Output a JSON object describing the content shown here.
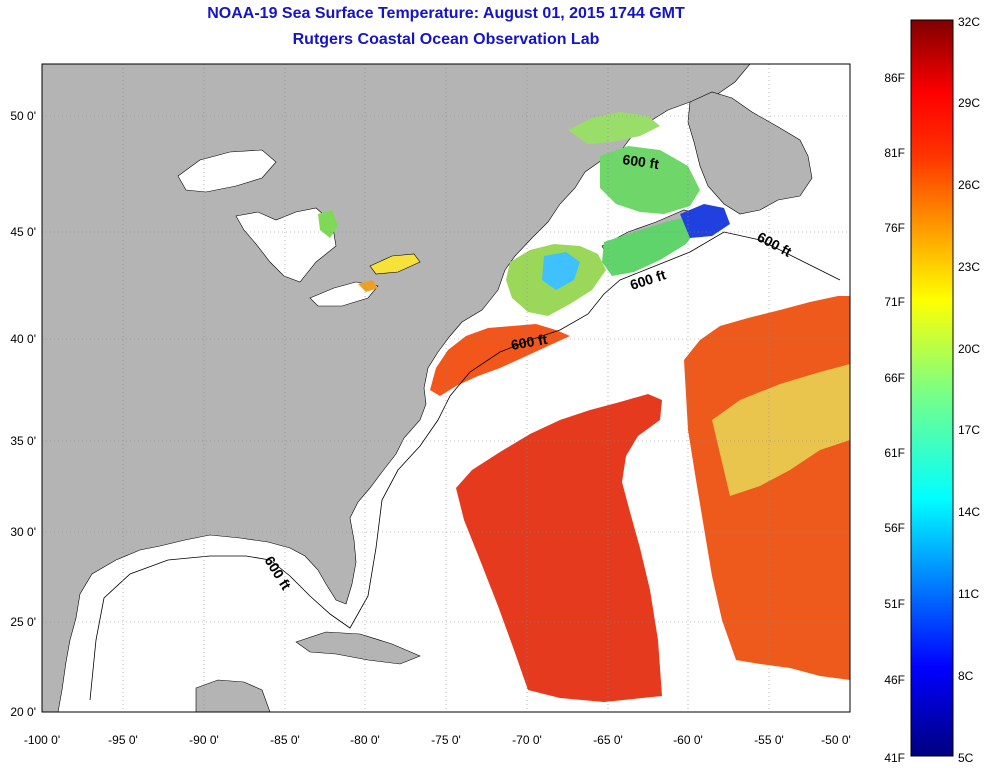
{
  "header": {
    "title": "NOAA-19 Sea Surface Temperature:  August 01, 2015 1744 GMT",
    "subtitle": "Rutgers Coastal Ocean Observation Lab"
  },
  "map": {
    "lon_ticks": [
      "-100 0'",
      "-95 0'",
      "-90 0'",
      "-85 0'",
      "-80 0'",
      "-75 0'",
      "-70 0'",
      "-65 0'",
      "-60 0'",
      "-55 0'",
      "-50 0'"
    ],
    "lat_ticks": [
      "20 0'",
      "25 0'",
      "30 0'",
      "35 0'",
      "40 0'",
      "45 0'",
      "50 0'"
    ],
    "contour_labels": [
      "600 ft",
      "600 ft",
      "600 ft",
      "600 ft",
      "600 ft"
    ],
    "land_color": "#b4b4b4",
    "cloud_color": "#ffffff"
  },
  "colorbar": {
    "celsius_labels": [
      "32C",
      "29C",
      "26C",
      "23C",
      "20C",
      "17C",
      "14C",
      "11C",
      "8C",
      "5C"
    ],
    "fahrenheit_labels": [
      "86F",
      "81F",
      "76F",
      "71F",
      "66F",
      "61F",
      "56F",
      "51F",
      "46F",
      "41F"
    ],
    "colors": [
      "#800000",
      "#ff0000",
      "#ff8000",
      "#ffff00",
      "#80ff80",
      "#00ffff",
      "#0080ff",
      "#0000ff",
      "#000080"
    ]
  }
}
